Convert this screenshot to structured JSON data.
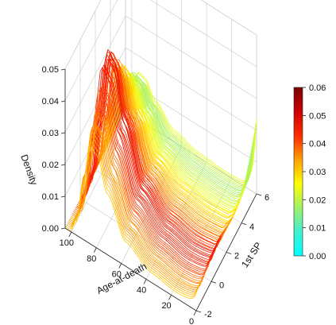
{
  "chart_data": {
    "type": "line",
    "subtype": "3d-ribbon-density-curves",
    "title": "",
    "xlabel": "Age-at-death",
    "ylabel": "1st SP",
    "zlabel": "Density",
    "x_ticks": [
      "100",
      "80",
      "60",
      "40",
      "20",
      "0"
    ],
    "y_ticks": [
      "-2",
      "0",
      "2",
      "4",
      "6"
    ],
    "z_ticks": [
      "0.00",
      "0.01",
      "0.02",
      "0.03",
      "0.04",
      "0.05"
    ],
    "xlim": [
      0,
      105
    ],
    "ylim": [
      -2,
      6
    ],
    "zlim": [
      0,
      0.05
    ],
    "grid": true,
    "colorbar": {
      "ticks": [
        "0.00",
        "0.01",
        "0.02",
        "0.03",
        "0.04",
        "0.05",
        "0.06"
      ],
      "range": [
        0,
        0.06
      ],
      "colors": [
        "#00ffff",
        "#3ff0d0",
        "#a0f06a",
        "#ffff00",
        "#ffa000",
        "#ff2a00",
        "#cc0000",
        "#7a0000"
      ],
      "placement": "right"
    },
    "series_summary": {
      "count": 80,
      "param_range": [
        -2,
        6
      ],
      "density_shape": [
        {
          "age": 0,
          "density": 0.005
        },
        {
          "age": 5,
          "density": 0.003
        },
        {
          "age": 20,
          "density": 0.0025
        },
        {
          "age": 40,
          "density": 0.004
        },
        {
          "age": 60,
          "density": 0.01
        },
        {
          "age": 75,
          "density": 0.025
        },
        {
          "age": 83,
          "density": 0.038
        },
        {
          "age": 88,
          "density": 0.04
        },
        {
          "age": 95,
          "density": 0.02
        },
        {
          "age": 100,
          "density": 0.005
        },
        {
          "age": 105,
          "density": 0.0
        }
      ],
      "peak_density_range": [
        0.015,
        0.048
      ],
      "infant_density_range": [
        0.003,
        0.022
      ]
    }
  }
}
